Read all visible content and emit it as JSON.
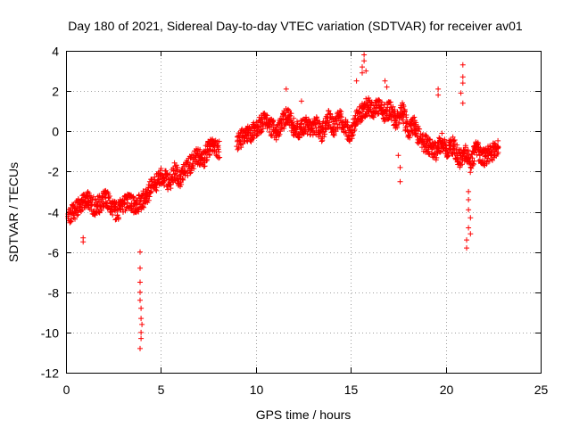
{
  "chart_data": {
    "type": "scatter",
    "title": "Day 180 of 2021, Sidereal Day-to-day VTEC variation (SDTVAR) for receiver av01",
    "xlabel": "GPS time / hours",
    "ylabel": "SDTVAR / TECUs",
    "xlim": [
      0,
      25
    ],
    "ylim": [
      -12,
      4
    ],
    "xticks": [
      "0",
      "5",
      "10",
      "15",
      "20",
      "25"
    ],
    "yticks": [
      "4",
      "2",
      "0",
      "-2",
      "-4",
      "-6",
      "-8",
      "-10",
      "-12"
    ],
    "grid": true,
    "marker": "+",
    "series": [
      {
        "name": "SDTVAR",
        "color": "#ff0000",
        "trend": [
          [
            0.0,
            -4.3
          ],
          [
            0.3,
            -4.1
          ],
          [
            0.6,
            -3.8
          ],
          [
            0.9,
            -3.6
          ],
          [
            1.2,
            -3.4
          ],
          [
            1.5,
            -3.8
          ],
          [
            1.8,
            -3.6
          ],
          [
            2.1,
            -3.2
          ],
          [
            2.4,
            -3.8
          ],
          [
            2.7,
            -4.0
          ],
          [
            3.0,
            -3.6
          ],
          [
            3.3,
            -3.5
          ],
          [
            3.6,
            -3.7
          ],
          [
            3.9,
            -3.5
          ],
          [
            4.2,
            -3.3
          ],
          [
            4.5,
            -2.8
          ],
          [
            4.8,
            -2.5
          ],
          [
            5.1,
            -2.2
          ],
          [
            5.4,
            -2.6
          ],
          [
            5.7,
            -2.0
          ],
          [
            6.0,
            -2.3
          ],
          [
            6.3,
            -1.9
          ],
          [
            6.6,
            -1.6
          ],
          [
            6.9,
            -1.2
          ],
          [
            7.2,
            -1.5
          ],
          [
            7.5,
            -0.9
          ],
          [
            7.8,
            -0.8
          ],
          [
            8.1,
            -0.9
          ],
          [
            9.0,
            -0.6
          ],
          [
            9.3,
            -0.3
          ],
          [
            9.6,
            -0.2
          ],
          [
            9.9,
            0.1
          ],
          [
            10.2,
            0.3
          ],
          [
            10.5,
            0.5
          ],
          [
            10.8,
            0.2
          ],
          [
            11.1,
            0.0
          ],
          [
            11.4,
            0.5
          ],
          [
            11.7,
            0.8
          ],
          [
            12.0,
            0.2
          ],
          [
            12.3,
            0.0
          ],
          [
            12.6,
            0.4
          ],
          [
            12.9,
            0.2
          ],
          [
            13.2,
            0.3
          ],
          [
            13.5,
            -0.1
          ],
          [
            13.8,
            0.6
          ],
          [
            14.1,
            0.2
          ],
          [
            14.4,
            0.7
          ],
          [
            14.7,
            0.2
          ],
          [
            15.0,
            -0.2
          ],
          [
            15.3,
            0.6
          ],
          [
            15.6,
            1.0
          ],
          [
            15.9,
            1.3
          ],
          [
            16.2,
            1.0
          ],
          [
            16.5,
            1.2
          ],
          [
            16.8,
            0.9
          ],
          [
            17.1,
            1.1
          ],
          [
            17.4,
            0.5
          ],
          [
            17.7,
            1.1
          ],
          [
            18.0,
            0.0
          ],
          [
            18.3,
            0.3
          ],
          [
            18.6,
            -0.3
          ],
          [
            18.9,
            -0.6
          ],
          [
            19.2,
            -0.8
          ],
          [
            19.5,
            -1.0
          ],
          [
            19.8,
            -0.5
          ],
          [
            20.1,
            -0.9
          ],
          [
            20.4,
            -0.7
          ],
          [
            20.7,
            -1.4
          ],
          [
            21.0,
            -1.0
          ],
          [
            21.3,
            -1.6
          ],
          [
            21.6,
            -0.8
          ],
          [
            21.9,
            -1.3
          ],
          [
            22.2,
            -1.2
          ],
          [
            22.5,
            -1.0
          ],
          [
            22.8,
            -0.6
          ]
        ],
        "outliers": [
          [
            3.9,
            -6.0
          ],
          [
            3.9,
            -6.8
          ],
          [
            3.9,
            -7.5
          ],
          [
            3.9,
            -8.0
          ],
          [
            3.9,
            -8.4
          ],
          [
            3.95,
            -8.8
          ],
          [
            3.95,
            -9.3
          ],
          [
            3.95,
            -10.0
          ],
          [
            3.95,
            -10.3
          ],
          [
            3.9,
            -10.8
          ],
          [
            4.0,
            -9.6
          ],
          [
            0.9,
            -5.3
          ],
          [
            0.9,
            -5.5
          ],
          [
            15.7,
            3.8
          ],
          [
            15.7,
            3.5
          ],
          [
            15.6,
            3.2
          ],
          [
            15.6,
            2.9
          ],
          [
            15.8,
            3.0
          ],
          [
            15.3,
            2.5
          ],
          [
            21.2,
            -3.0
          ],
          [
            21.2,
            -3.4
          ],
          [
            21.2,
            -3.9
          ],
          [
            21.3,
            -4.3
          ],
          [
            21.2,
            -4.8
          ],
          [
            21.1,
            -5.4
          ],
          [
            21.1,
            -5.8
          ],
          [
            21.3,
            -5.1
          ],
          [
            20.9,
            3.3
          ],
          [
            20.9,
            2.7
          ],
          [
            20.9,
            2.4
          ],
          [
            20.8,
            1.9
          ],
          [
            20.9,
            1.4
          ],
          [
            17.6,
            -2.5
          ],
          [
            17.6,
            -1.8
          ],
          [
            17.5,
            -1.2
          ],
          [
            19.6,
            2.1
          ],
          [
            19.6,
            1.8
          ],
          [
            16.8,
            2.5
          ],
          [
            16.9,
            2.2
          ],
          [
            11.6,
            2.1
          ],
          [
            12.4,
            1.5
          ]
        ]
      }
    ]
  }
}
